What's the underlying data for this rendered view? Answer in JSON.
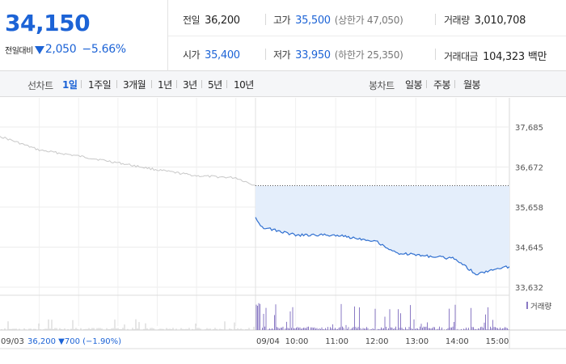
{
  "quote": {
    "price": "34,150",
    "change_label": "전일대비",
    "change_value": "2,050",
    "change_pct": "−5.66%",
    "stats": {
      "prev_close": {
        "label": "전일",
        "value": "36,200"
      },
      "open": {
        "label": "시가",
        "value": "35,400"
      },
      "high": {
        "label": "고가",
        "value": "35,500",
        "sub": "(상한가 47,050)"
      },
      "low": {
        "label": "저가",
        "value": "33,950",
        "sub": "(하한가 25,350)"
      },
      "volume": {
        "label": "거래량",
        "value": "3,010,708"
      },
      "amount": {
        "label": "거래대금",
        "value": "104,323",
        "unit": "백만"
      }
    },
    "accent_color": "#1c63d6"
  },
  "toolbar": {
    "line_label": "선차트",
    "periods": [
      "1일",
      "1주일",
      "3개월",
      "1년",
      "3년",
      "5년",
      "10년"
    ],
    "active_period": "1일",
    "candle_label": "봉차트",
    "candle_periods": [
      "일봉",
      "주봉",
      "월봉"
    ]
  },
  "chart_data": {
    "type": "line",
    "y_ticks": [
      "37,685",
      "36,672",
      "35,658",
      "34,645",
      "33,632"
    ],
    "y_values": [
      37685,
      36672,
      35658,
      34645,
      33632
    ],
    "x_ticks": [
      "09/03",
      "09/04",
      "10:00",
      "11:00",
      "12:00",
      "13:00",
      "14:00",
      "15:00"
    ],
    "prev_day_caption": "09/03  36,200 ▼700 (−1.90%)",
    "volume_legend": "거래량",
    "prev_close": 36200,
    "series": [
      {
        "period": "09/03",
        "x": [
          "09:00",
          "10:00",
          "11:00",
          "12:00",
          "13:00",
          "14:00",
          "15:00",
          "15:30"
        ],
        "values": [
          37450,
          37100,
          36950,
          36780,
          36600,
          36450,
          36400,
          36200
        ]
      },
      {
        "period": "09/04",
        "x": [
          "09:00",
          "09:10",
          "10:00",
          "11:00",
          "12:00",
          "12:30",
          "13:00",
          "14:00",
          "14:30",
          "15:00",
          "15:20"
        ],
        "values": [
          35400,
          35150,
          34950,
          34950,
          34800,
          34500,
          34450,
          34350,
          33950,
          34100,
          34150
        ]
      }
    ],
    "colors": {
      "prev_line": "#c8c8c8",
      "line": "#2f6fd0",
      "fill": "#e4eefb",
      "volume": "#8a79c4",
      "volume_prev": "#cccccc"
    },
    "grid": true
  }
}
